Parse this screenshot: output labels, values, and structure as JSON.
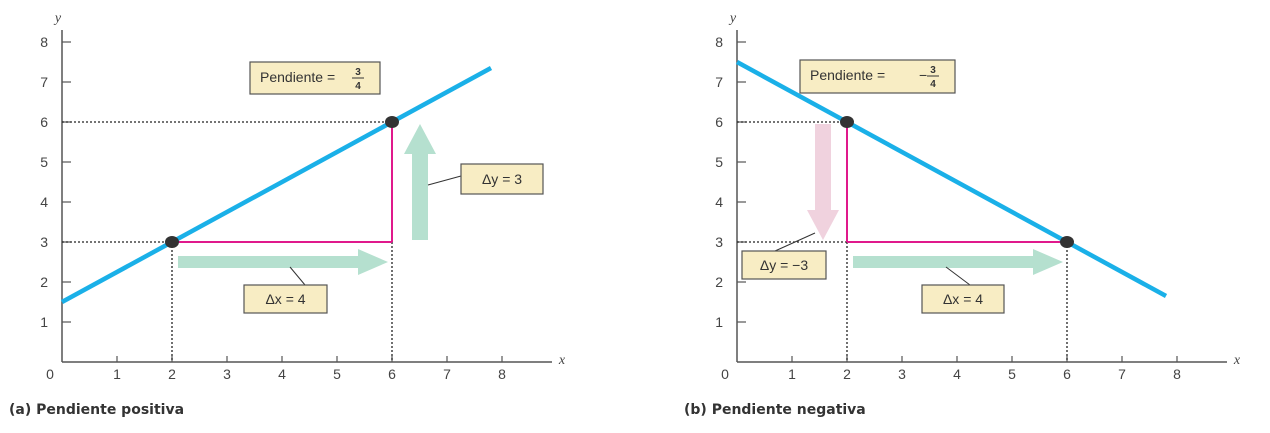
{
  "chart_data": [
    {
      "type": "line",
      "caption": "(a) Pendiente positiva",
      "xlabel": "x",
      "ylabel": "y",
      "xlim": [
        0,
        8
      ],
      "ylim": [
        0,
        8
      ],
      "x_ticks": [
        "1",
        "2",
        "3",
        "4",
        "5",
        "6",
        "7",
        "8"
      ],
      "y_ticks": [
        "1",
        "2",
        "3",
        "4",
        "5",
        "6",
        "7",
        "8"
      ],
      "origin_label": "0",
      "line": {
        "x": [
          0,
          7.8
        ],
        "y": [
          1.5,
          7.35
        ]
      },
      "points": [
        {
          "x": 2,
          "y": 3
        },
        {
          "x": 6,
          "y": 6
        }
      ],
      "slope_label": {
        "text": "Pendiente =",
        "sign": "",
        "numerator": "3",
        "denominator": "4"
      },
      "delta_x_label": "Δx = 4",
      "delta_y_label": "Δy = 3",
      "delta_y_direction": "up"
    },
    {
      "type": "line",
      "caption": "(b) Pendiente negativa",
      "xlabel": "x",
      "ylabel": "y",
      "xlim": [
        0,
        8
      ],
      "ylim": [
        0,
        8
      ],
      "x_ticks": [
        "1",
        "2",
        "3",
        "4",
        "5",
        "6",
        "7",
        "8"
      ],
      "y_ticks": [
        "1",
        "2",
        "3",
        "4",
        "5",
        "6",
        "7",
        "8"
      ],
      "origin_label": "0",
      "line": {
        "x": [
          0,
          7.8
        ],
        "y": [
          7.5,
          1.65
        ]
      },
      "points": [
        {
          "x": 2,
          "y": 6
        },
        {
          "x": 6,
          "y": 3
        }
      ],
      "slope_label": {
        "text": "Pendiente =",
        "sign": "−",
        "numerator": "3",
        "denominator": "4"
      },
      "delta_x_label": "Δx = 4",
      "delta_y_label": "Δy = −3",
      "delta_y_direction": "down"
    }
  ],
  "colors": {
    "line": "#1ab0e8",
    "triangle": "#e0198c",
    "arrow_x": "#b5e0cf",
    "arrow_y_up": "#b5e0cf",
    "arrow_y_down": "#f0d2de",
    "label_box": "#f8edc4",
    "point": "#333333"
  }
}
